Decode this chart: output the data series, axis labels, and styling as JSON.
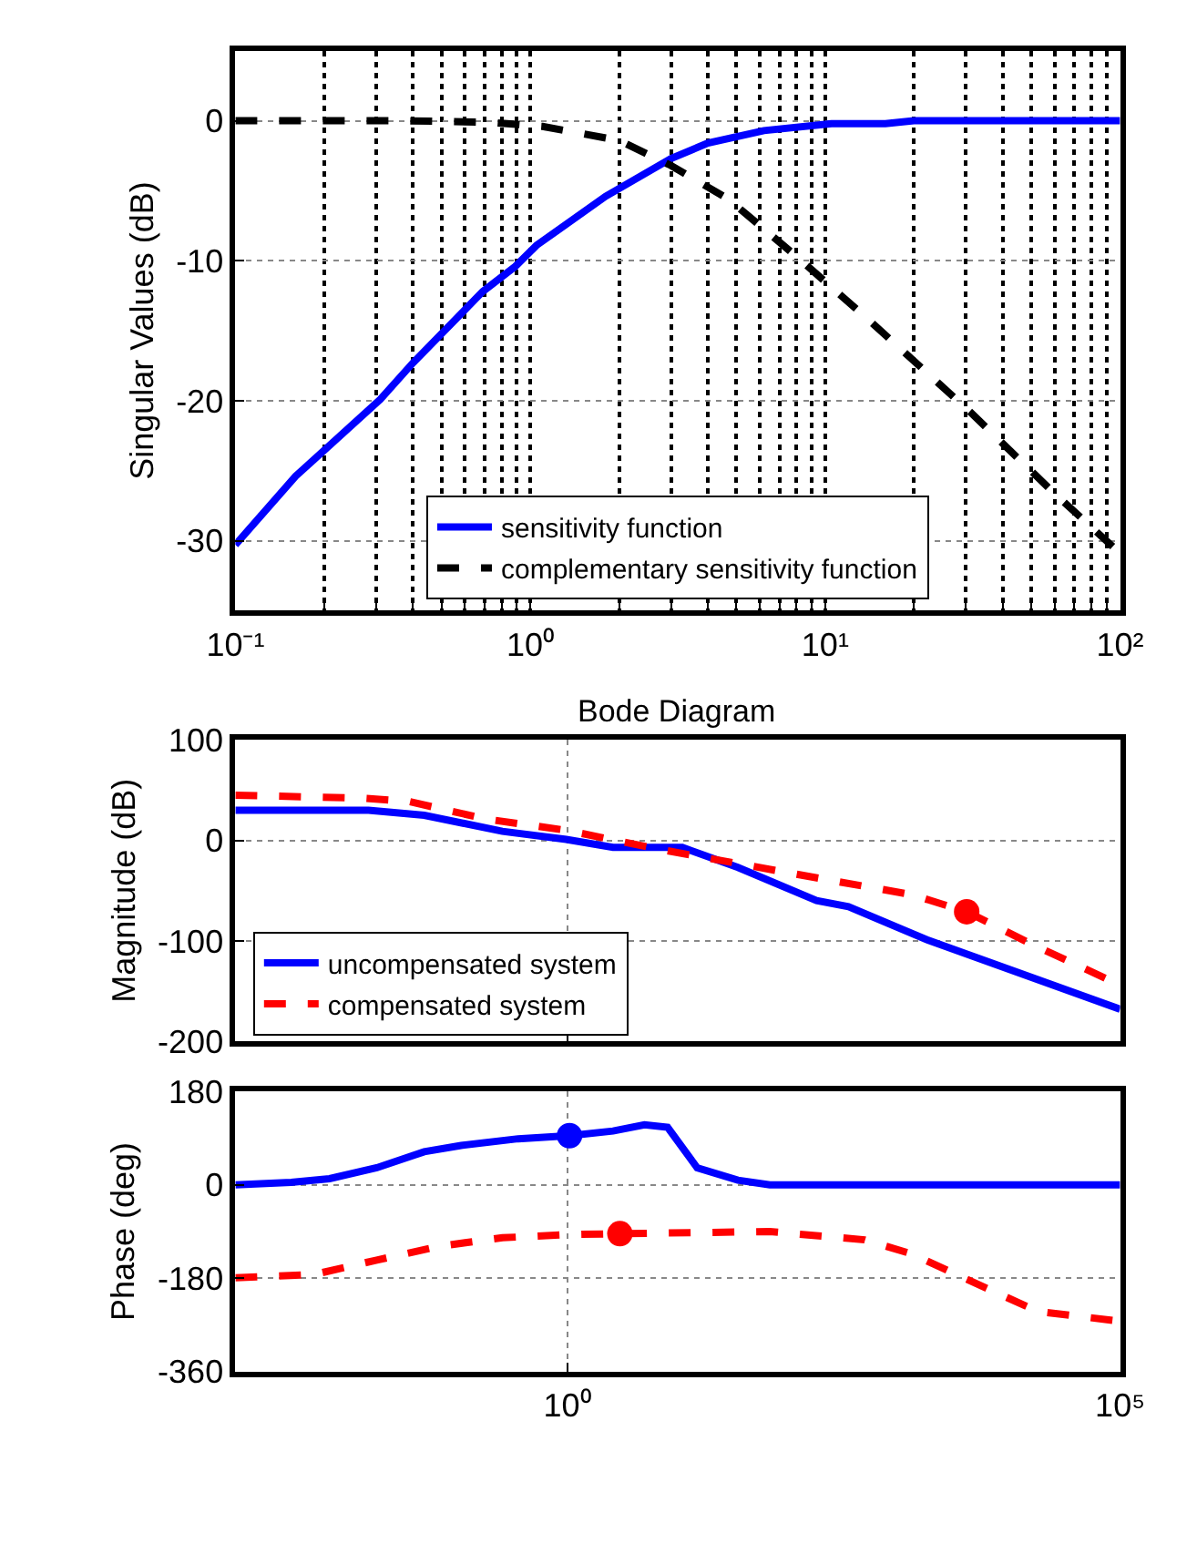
{
  "chart_data": [
    {
      "type": "line",
      "ylabel": "Singular Values (dB)",
      "log": "x",
      "grid": true,
      "legend": "bottom",
      "xlim": [
        0.1,
        100
      ],
      "xticks": [
        {
          "value": 0.1,
          "label": "10⁻¹"
        },
        {
          "value": 0.2,
          "label": null
        },
        {
          "value": 0.3,
          "label": null
        },
        {
          "value": 0.4,
          "label": null
        },
        {
          "value": 0.5,
          "label": null
        },
        {
          "value": 0.6,
          "label": null
        },
        {
          "value": 0.7,
          "label": null
        },
        {
          "value": 0.8,
          "label": null
        },
        {
          "value": 0.9,
          "label": null
        },
        {
          "value": 1,
          "label": "10⁰"
        },
        {
          "value": 2,
          "label": null
        },
        {
          "value": 3,
          "label": null
        },
        {
          "value": 4,
          "label": null
        },
        {
          "value": 5,
          "label": null
        },
        {
          "value": 6,
          "label": null
        },
        {
          "value": 7,
          "label": null
        },
        {
          "value": 8,
          "label": null
        },
        {
          "value": 9,
          "label": null
        },
        {
          "value": 10,
          "label": "10¹"
        },
        {
          "value": 20,
          "label": null
        },
        {
          "value": 30,
          "label": null
        },
        {
          "value": 40,
          "label": null
        },
        {
          "value": 50,
          "label": null
        },
        {
          "value": 60,
          "label": null
        },
        {
          "value": 70,
          "label": null
        },
        {
          "value": 80,
          "label": null
        },
        {
          "value": 90,
          "label": null
        },
        {
          "value": 100,
          "label": "10²"
        }
      ],
      "ylim": [
        -35,
        5
      ],
      "yticks": [
        -30,
        -20,
        -10,
        0
      ],
      "series": [
        {
          "name": "sensitivity function",
          "color": "#0000ff",
          "line_style": "solid",
          "x": [
            0.1,
            0.16,
            0.31,
            0.4,
            0.69,
            0.89,
            1.05,
            1.8,
            3.0,
            4.0,
            6.2,
            10.5,
            16,
            20,
            100
          ],
          "values": [
            -30.3,
            -25.4,
            -19.9,
            -17.3,
            -12.2,
            -10.4,
            -8.9,
            -5.4,
            -2.7,
            -1.6,
            -0.7,
            -0.2,
            -0.2,
            0,
            0
          ]
        },
        {
          "name": "complementary sensitivity function",
          "color": "#000000",
          "line_style": "dashed",
          "x": [
            0.1,
            0.38,
            0.72,
            1.1,
            2.0,
            3.0,
            4.7,
            8.1,
            14,
            31,
            59,
            100
          ],
          "values": [
            0,
            0,
            -0.1,
            -0.4,
            -1.4,
            -3.2,
            -5.6,
            -9.8,
            -14.2,
            -20.8,
            -26.5,
            -30.9
          ]
        }
      ]
    },
    {
      "type": "line",
      "title": "Bode Diagram",
      "ylabel": "Magnitude (dB)",
      "log": "x",
      "grid": true,
      "legend": "bottom left",
      "tick_labels": "y",
      "xlim": [
        0.001,
        100000
      ],
      "xticks": [
        {
          "value": 1,
          "label": null
        },
        {
          "value": 100000,
          "label": null
        }
      ],
      "ylim": [
        -200,
        100
      ],
      "yticks": [
        -200,
        -100,
        0,
        100
      ],
      "series": [
        {
          "name": "uncompensated system",
          "color": "#0000ff",
          "line_style": "solid",
          "x": [
            0.001,
            0.016,
            0.051,
            0.26,
            0.98,
            2.6,
            11,
            35,
            180,
            350,
            1800,
            100000
          ],
          "values": [
            30,
            30,
            25,
            9,
            1,
            -7,
            -7,
            -27,
            -60,
            -66,
            -99,
            -168
          ]
        },
        {
          "name": "compensated system",
          "color": "#ff0000",
          "line_style": "dashed",
          "x": [
            0.001,
            0.014,
            0.036,
            0.19,
            0.98,
            6.9,
            155,
            1300,
            4100,
            15000,
            100000
          ],
          "values": [
            45,
            42,
            39,
            21,
            10,
            -9,
            -36,
            -54,
            -71,
            -102,
            -144
          ]
        },
        {
          "type": "scatter",
          "color": "#ff0000",
          "marker": "circle",
          "x": [
            4100
          ],
          "values": [
            -71
          ]
        }
      ]
    },
    {
      "type": "line",
      "ylabel": "Phase (deg)",
      "log": "x",
      "grid": true,
      "xlim": [
        0.001,
        100000
      ],
      "xticks": [
        {
          "value": 1,
          "label": "10⁰"
        },
        {
          "value": 100000,
          "label": "10⁵"
        }
      ],
      "ylim": [
        -360,
        180
      ],
      "yticks": [
        -360,
        -180,
        0,
        180
      ],
      "series": [
        {
          "color": "#0000ff",
          "line_style": "solid",
          "x": [
            0.001,
            0.0032,
            0.0071,
            0.019,
            0.051,
            0.11,
            0.36,
            1.05,
            2.6,
            5.0,
            8.1,
            15,
            35,
            68,
            100000
          ],
          "values": [
            0,
            5,
            12,
            33,
            64,
            76,
            89,
            95,
            104,
            116,
            111,
            33,
            9,
            0,
            0
          ]
        },
        {
          "color": "#ff0000",
          "line_style": "dashed",
          "x": [
            0.001,
            0.0051,
            0.019,
            0.071,
            0.26,
            0.98,
            3.0,
            68,
            490,
            1300,
            4100,
            18000,
            100000
          ],
          "values": [
            -179,
            -173,
            -145,
            -118,
            -102,
            -96,
            -94,
            -90,
            -106,
            -133,
            -182,
            -244,
            -263
          ]
        },
        {
          "type": "scatter",
          "color": "#0000ff",
          "marker": "circle",
          "x": [
            1.05
          ],
          "values": [
            95
          ]
        },
        {
          "type": "scatter",
          "color": "#ff0000",
          "marker": "circle",
          "x": [
            3.0
          ],
          "values": [
            -94
          ]
        }
      ]
    }
  ]
}
